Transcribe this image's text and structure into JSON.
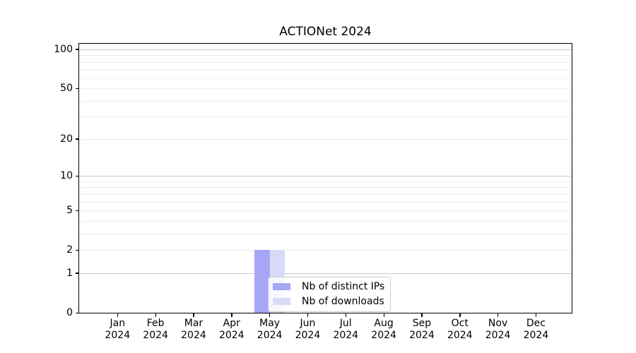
{
  "figure": {
    "background": "#ffffff"
  },
  "chart_data": {
    "type": "bar",
    "title": "ACTIONet 2024",
    "scale": "log1p",
    "xlabel": "",
    "ylabel": "",
    "categories": [
      {
        "month": "Jan",
        "year": "2024"
      },
      {
        "month": "Feb",
        "year": "2024"
      },
      {
        "month": "Mar",
        "year": "2024"
      },
      {
        "month": "Apr",
        "year": "2024"
      },
      {
        "month": "May",
        "year": "2024"
      },
      {
        "month": "Jun",
        "year": "2024"
      },
      {
        "month": "Jul",
        "year": "2024"
      },
      {
        "month": "Aug",
        "year": "2024"
      },
      {
        "month": "Sep",
        "year": "2024"
      },
      {
        "month": "Oct",
        "year": "2024"
      },
      {
        "month": "Nov",
        "year": "2024"
      },
      {
        "month": "Dec",
        "year": "2024"
      }
    ],
    "series": [
      {
        "name": "Nb of distinct IPs",
        "color": "#a6a6f6",
        "values": [
          0,
          0,
          0,
          0,
          2,
          0,
          0,
          0,
          0,
          0,
          0,
          0
        ]
      },
      {
        "name": "Nb of downloads",
        "color": "#d9d9f8",
        "values": [
          0,
          0,
          0,
          0,
          2,
          0,
          0,
          0,
          0,
          0,
          0,
          0
        ]
      }
    ],
    "yticks": [
      0,
      1,
      2,
      5,
      10,
      20,
      50,
      100
    ],
    "gridlines_minor": [
      2,
      3,
      4,
      5,
      6,
      7,
      8,
      9,
      20,
      30,
      40,
      50,
      60,
      70,
      80,
      90
    ],
    "gridlines_major": [
      1,
      10,
      100
    ],
    "ylim": [
      0,
      110
    ],
    "grid": true,
    "legend_position": "inside-bottom-center",
    "colors": {
      "axis": "#000000",
      "grid_minor": "#ededed",
      "grid_major": "#c9c9c9",
      "legend_border": "#cccccc"
    }
  }
}
